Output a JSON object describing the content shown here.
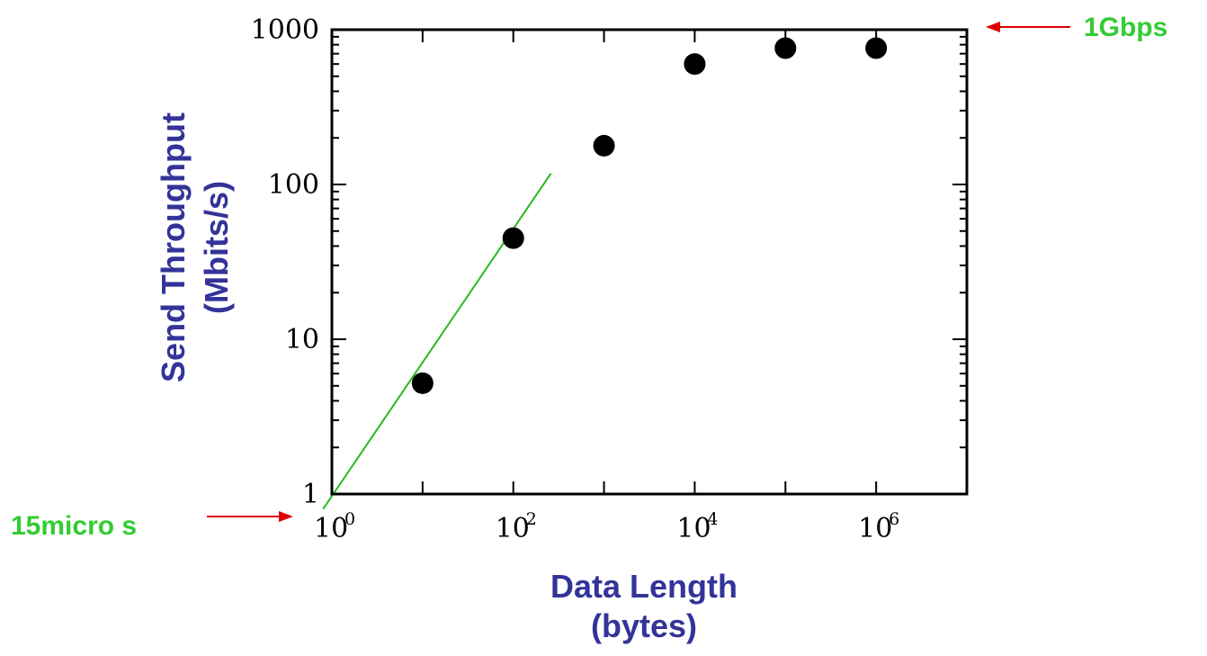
{
  "chart_data": {
    "type": "scatter",
    "xlabel_line1": "Data Length",
    "xlabel_line2": "(bytes)",
    "ylabel_line1": "Send Throughput",
    "ylabel_line2": "(Mbits/s)",
    "xscale": "log",
    "yscale": "log",
    "xlim": [
      1,
      10000000
    ],
    "ylim": [
      1,
      1000
    ],
    "grid": false,
    "x_ticks": [
      {
        "base": "10",
        "exp": "0",
        "value": 1
      },
      {
        "base": "10",
        "exp": "2",
        "value": 100
      },
      {
        "base": "10",
        "exp": "4",
        "value": 10000
      },
      {
        "base": "10",
        "exp": "6",
        "value": 1000000
      }
    ],
    "y_ticks": [
      {
        "label": "1",
        "value": 1
      },
      {
        "label": "10",
        "value": 10
      },
      {
        "label": "100",
        "value": 100
      },
      {
        "label": "1000",
        "value": 1000
      }
    ],
    "series": [
      {
        "points": [
          {
            "x": 10,
            "y": 5.2
          },
          {
            "x": 100,
            "y": 45
          },
          {
            "x": 1000,
            "y": 178
          },
          {
            "x": 10000,
            "y": 600
          },
          {
            "x": 100000,
            "y": 760
          },
          {
            "x": 1000000,
            "y": 760
          }
        ],
        "color": "#000000"
      }
    ],
    "fit_line": {
      "color": "#22bb22",
      "from": {
        "x": 0.8,
        "y": 0.8
      },
      "to": {
        "x": 260,
        "y": 118
      }
    },
    "annotations": {
      "top_label": "1Gbps",
      "bottom_label": "15micro s",
      "label_color": "#33cc33",
      "arrow_color": "#dd0000"
    },
    "title_color": "#333399"
  }
}
